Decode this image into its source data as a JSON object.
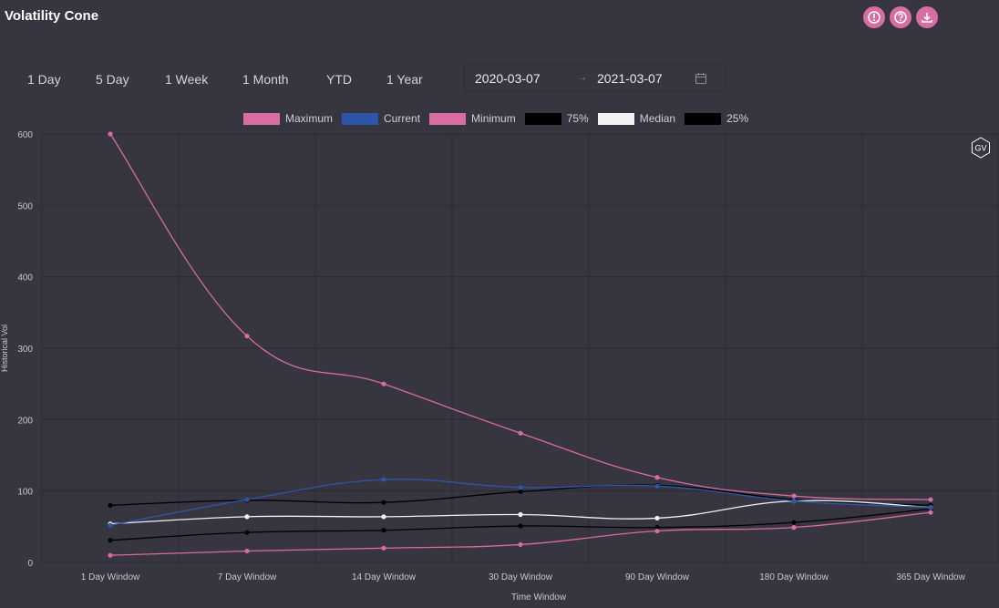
{
  "header": {
    "title": "Volatility Cone"
  },
  "toolbar": {
    "icons": [
      "alert-icon",
      "help-icon",
      "download-icon"
    ]
  },
  "ranges": [
    "1 Day",
    "5 Day",
    "1 Week",
    "1 Month",
    "YTD",
    "1 Year"
  ],
  "date_range": {
    "start": "2020-03-07",
    "separator": "→",
    "end": "2021-03-07"
  },
  "badge": {
    "text": "GV"
  },
  "colors": {
    "pink": "#d86ca3",
    "blue": "#2e56a8",
    "black": "#000000",
    "white": "#f2f2f2",
    "background": "#363540",
    "grid": "#2b2a33"
  },
  "chart_data": {
    "type": "line",
    "xlabel": "Time Window",
    "ylabel": "Historical Vol",
    "ylim": [
      0,
      600
    ],
    "yticks": [
      0,
      100,
      200,
      300,
      400,
      500,
      600
    ],
    "grid": true,
    "legend_position": "top",
    "categories": [
      "1 Day Window",
      "7 Day Window",
      "14 Day Window",
      "30 Day Window",
      "90 Day Window",
      "180 Day Window",
      "365 Day Window"
    ],
    "series": [
      {
        "name": "Maximum",
        "color": "#d86ca3",
        "values": [
          600,
          317,
          250,
          181,
          119,
          93,
          88
        ]
      },
      {
        "name": "Current",
        "color": "#2e56a8",
        "values": [
          52,
          88,
          116,
          105,
          107,
          86,
          77
        ]
      },
      {
        "name": "Minimum",
        "color": "#d86ca3",
        "values": [
          10,
          16,
          20,
          25,
          44,
          49,
          70
        ]
      },
      {
        "name": "75%",
        "color": "#000000",
        "values": [
          80,
          87,
          84,
          99,
          108,
          88,
          80
        ]
      },
      {
        "name": "Median",
        "color": "#f2f2f2",
        "values": [
          54,
          64,
          64,
          67,
          62,
          86,
          77
        ]
      },
      {
        "name": "25%",
        "color": "#000000",
        "values": [
          31,
          42,
          45,
          51,
          49,
          56,
          75
        ]
      }
    ]
  }
}
